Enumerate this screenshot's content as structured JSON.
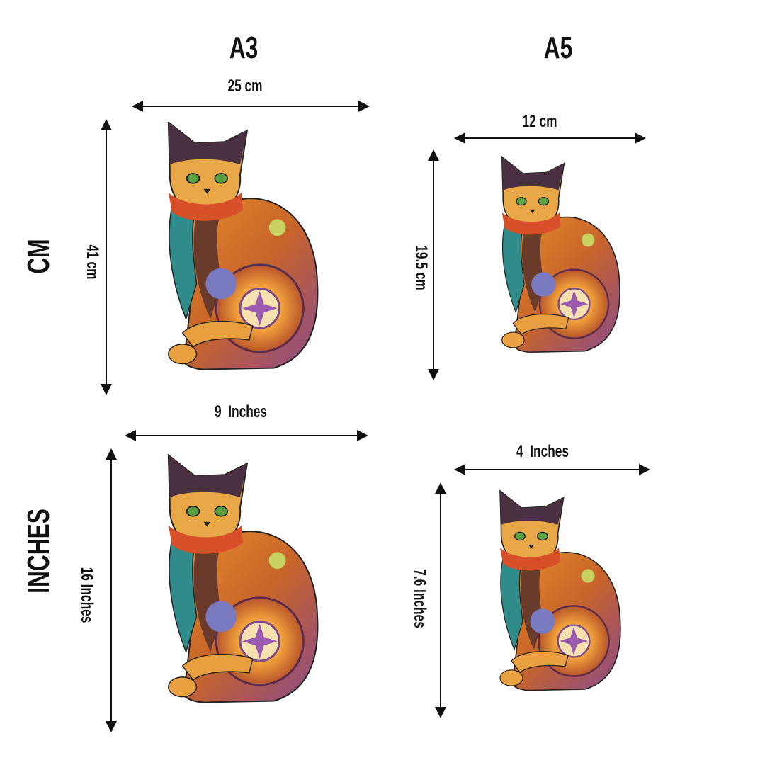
{
  "columns": {
    "a3": "A3",
    "a5": "A5"
  },
  "rows": {
    "cm": "CM",
    "inches": "INCHES"
  },
  "dimensions": {
    "a3_cm": {
      "width": "25 cm",
      "height": "41 cm"
    },
    "a5_cm": {
      "width": "12 cm",
      "height": "19.5 cm"
    },
    "a3_in": {
      "width": "9  Inches",
      "height": "16 Inches"
    },
    "a5_in": {
      "width": "4  Inches",
      "height": "7.6 Inches"
    }
  },
  "colors": {
    "line": "#111111",
    "orange": "#e8902a",
    "teal": "#2f8c8a",
    "purple": "#6a4a8c",
    "dark": "#3a2a2a",
    "yellow": "#f6c24a"
  }
}
